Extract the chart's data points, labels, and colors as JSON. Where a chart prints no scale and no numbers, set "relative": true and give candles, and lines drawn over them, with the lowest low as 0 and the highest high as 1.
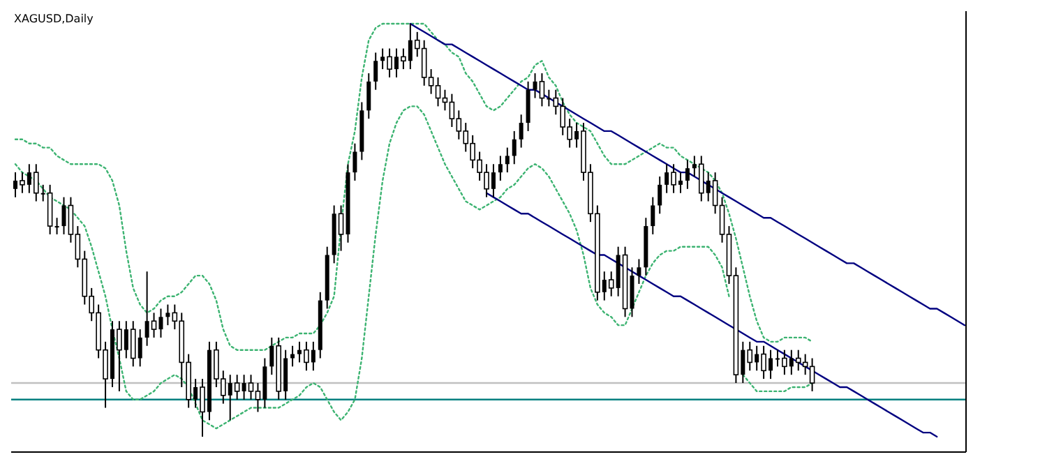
{
  "chart_data": {
    "type": "candlestick",
    "title": "XAGUSD,Daily",
    "relative": true,
    "color": "#000000",
    "categories": [
      null,
      null,
      null,
      null,
      null,
      null,
      null,
      null,
      null,
      null,
      null,
      null,
      null,
      null,
      null,
      null,
      null,
      null,
      null,
      null,
      null,
      null,
      null,
      null,
      null,
      null,
      null,
      null,
      null,
      null,
      null,
      null,
      null,
      null,
      null,
      null,
      null,
      null,
      null,
      null,
      null,
      null,
      null,
      null,
      null,
      null,
      null,
      null,
      null,
      null,
      null,
      null,
      null,
      null,
      null,
      null,
      null,
      null,
      null,
      null,
      null,
      null,
      null,
      null,
      null,
      null,
      null,
      null,
      null,
      null,
      null,
      null,
      null,
      null,
      null,
      null,
      null,
      null,
      null,
      null,
      null,
      null,
      null,
      null,
      null,
      null,
      null,
      null,
      null,
      null,
      null,
      null,
      null,
      null,
      null,
      null,
      null,
      null,
      null,
      null,
      null,
      null,
      null,
      null,
      null,
      null,
      null,
      null,
      null,
      null,
      null,
      null,
      null,
      null,
      null,
      null,
      null,
      null,
      null,
      null,
      null,
      null,
      null,
      null,
      null,
      null,
      null,
      null,
      null,
      null,
      null,
      null,
      null,
      null,
      null,
      null,
      null,
      null
    ],
    "ohlc": [
      [
        0.6,
        0.64,
        0.58,
        0.62
      ],
      [
        0.62,
        0.64,
        0.59,
        0.61
      ],
      [
        0.61,
        0.66,
        0.59,
        0.64
      ],
      [
        0.64,
        0.66,
        0.57,
        0.59
      ],
      [
        0.59,
        0.61,
        0.57,
        0.59
      ],
      [
        0.59,
        0.61,
        0.49,
        0.51
      ],
      [
        0.51,
        0.53,
        0.49,
        0.51
      ],
      [
        0.51,
        0.58,
        0.49,
        0.56
      ],
      [
        0.56,
        0.58,
        0.47,
        0.49
      ],
      [
        0.49,
        0.51,
        0.41,
        0.43
      ],
      [
        0.43,
        0.45,
        0.32,
        0.34
      ],
      [
        0.34,
        0.36,
        0.28,
        0.3
      ],
      [
        0.3,
        0.32,
        0.19,
        0.21
      ],
      [
        0.21,
        0.23,
        0.07,
        0.14
      ],
      [
        0.14,
        0.28,
        0.12,
        0.26
      ],
      [
        0.26,
        0.28,
        0.11,
        0.21
      ],
      [
        0.21,
        0.28,
        0.19,
        0.26
      ],
      [
        0.26,
        0.28,
        0.17,
        0.19
      ],
      [
        0.19,
        0.26,
        0.17,
        0.24
      ],
      [
        0.24,
        0.4,
        0.22,
        0.28
      ],
      [
        0.28,
        0.3,
        0.24,
        0.26
      ],
      [
        0.26,
        0.31,
        0.24,
        0.29
      ],
      [
        0.29,
        0.32,
        0.27,
        0.3
      ],
      [
        0.3,
        0.32,
        0.26,
        0.28
      ],
      [
        0.28,
        0.3,
        0.12,
        0.18
      ],
      [
        0.18,
        0.2,
        0.07,
        0.09
      ],
      [
        0.09,
        0.14,
        0.07,
        0.12
      ],
      [
        0.12,
        0.14,
        0.0,
        0.06
      ],
      [
        0.06,
        0.23,
        0.04,
        0.21
      ],
      [
        0.21,
        0.23,
        0.12,
        0.14
      ],
      [
        0.14,
        0.16,
        0.08,
        0.1
      ],
      [
        0.1,
        0.15,
        0.04,
        0.13
      ],
      [
        0.13,
        0.15,
        0.09,
        0.11
      ],
      [
        0.11,
        0.15,
        0.09,
        0.13
      ],
      [
        0.13,
        0.15,
        0.09,
        0.11
      ],
      [
        0.11,
        0.13,
        0.06,
        0.09
      ],
      [
        0.09,
        0.19,
        0.07,
        0.17
      ],
      [
        0.17,
        0.24,
        0.15,
        0.22
      ],
      [
        0.22,
        0.24,
        0.09,
        0.11
      ],
      [
        0.11,
        0.21,
        0.09,
        0.19
      ],
      [
        0.19,
        0.22,
        0.17,
        0.2
      ],
      [
        0.2,
        0.23,
        0.18,
        0.21
      ],
      [
        0.21,
        0.23,
        0.16,
        0.18
      ],
      [
        0.18,
        0.23,
        0.16,
        0.21
      ],
      [
        0.21,
        0.35,
        0.19,
        0.33
      ],
      [
        0.33,
        0.46,
        0.31,
        0.44
      ],
      [
        0.44,
        0.56,
        0.42,
        0.54
      ],
      [
        0.54,
        0.56,
        0.45,
        0.49
      ],
      [
        0.49,
        0.66,
        0.47,
        0.64
      ],
      [
        0.64,
        0.71,
        0.62,
        0.69
      ],
      [
        0.69,
        0.81,
        0.67,
        0.79
      ],
      [
        0.79,
        0.88,
        0.77,
        0.86
      ],
      [
        0.86,
        0.93,
        0.84,
        0.91
      ],
      [
        0.91,
        0.94,
        0.89,
        0.92
      ],
      [
        0.92,
        0.94,
        0.87,
        0.89
      ],
      [
        0.89,
        0.94,
        0.87,
        0.92
      ],
      [
        0.92,
        0.94,
        0.89,
        0.91
      ],
      [
        0.91,
        1.0,
        0.89,
        0.96
      ],
      [
        0.96,
        0.98,
        0.92,
        0.94
      ],
      [
        0.94,
        0.96,
        0.85,
        0.87
      ],
      [
        0.87,
        0.89,
        0.83,
        0.85
      ],
      [
        0.85,
        0.87,
        0.8,
        0.82
      ],
      [
        0.82,
        0.84,
        0.79,
        0.81
      ],
      [
        0.81,
        0.83,
        0.75,
        0.77
      ],
      [
        0.77,
        0.79,
        0.72,
        0.74
      ],
      [
        0.74,
        0.76,
        0.69,
        0.71
      ],
      [
        0.71,
        0.73,
        0.65,
        0.67
      ],
      [
        0.67,
        0.69,
        0.62,
        0.64
      ],
      [
        0.64,
        0.66,
        0.58,
        0.6
      ],
      [
        0.6,
        0.66,
        0.58,
        0.64
      ],
      [
        0.64,
        0.68,
        0.62,
        0.66
      ],
      [
        0.66,
        0.7,
        0.64,
        0.68
      ],
      [
        0.68,
        0.74,
        0.66,
        0.72
      ],
      [
        0.72,
        0.78,
        0.7,
        0.76
      ],
      [
        0.76,
        0.86,
        0.74,
        0.84
      ],
      [
        0.84,
        0.88,
        0.82,
        0.86
      ],
      [
        0.86,
        0.88,
        0.8,
        0.82
      ],
      [
        0.82,
        0.84,
        0.8,
        0.82
      ],
      [
        0.82,
        0.84,
        0.78,
        0.8
      ],
      [
        0.8,
        0.82,
        0.73,
        0.75
      ],
      [
        0.75,
        0.77,
        0.7,
        0.72
      ],
      [
        0.72,
        0.76,
        0.7,
        0.74
      ],
      [
        0.74,
        0.76,
        0.62,
        0.64
      ],
      [
        0.64,
        0.66,
        0.52,
        0.54
      ],
      [
        0.54,
        0.56,
        0.33,
        0.35
      ],
      [
        0.35,
        0.4,
        0.33,
        0.38
      ],
      [
        0.38,
        0.4,
        0.34,
        0.36
      ],
      [
        0.36,
        0.46,
        0.34,
        0.44
      ],
      [
        0.44,
        0.46,
        0.29,
        0.31
      ],
      [
        0.31,
        0.41,
        0.29,
        0.39
      ],
      [
        0.39,
        0.43,
        0.37,
        0.41
      ],
      [
        0.41,
        0.53,
        0.39,
        0.51
      ],
      [
        0.51,
        0.58,
        0.49,
        0.56
      ],
      [
        0.56,
        0.63,
        0.54,
        0.61
      ],
      [
        0.61,
        0.66,
        0.59,
        0.64
      ],
      [
        0.64,
        0.66,
        0.59,
        0.61
      ],
      [
        0.61,
        0.64,
        0.59,
        0.62
      ],
      [
        0.62,
        0.67,
        0.6,
        0.65
      ],
      [
        0.65,
        0.68,
        0.63,
        0.66
      ],
      [
        0.66,
        0.68,
        0.57,
        0.59
      ],
      [
        0.59,
        0.64,
        0.57,
        0.62
      ],
      [
        0.62,
        0.64,
        0.54,
        0.56
      ],
      [
        0.56,
        0.58,
        0.47,
        0.49
      ],
      [
        0.49,
        0.51,
        0.37,
        0.39
      ],
      [
        0.39,
        0.41,
        0.13,
        0.15
      ],
      [
        0.15,
        0.23,
        0.13,
        0.21
      ],
      [
        0.21,
        0.23,
        0.16,
        0.18
      ],
      [
        0.18,
        0.22,
        0.16,
        0.2
      ],
      [
        0.2,
        0.22,
        0.14,
        0.16
      ],
      [
        0.16,
        0.21,
        0.14,
        0.19
      ],
      [
        0.19,
        0.21,
        0.17,
        0.19
      ],
      [
        0.19,
        0.21,
        0.15,
        0.17
      ],
      [
        0.17,
        0.21,
        0.15,
        0.19
      ],
      [
        0.19,
        0.21,
        0.16,
        0.18
      ],
      [
        0.18,
        0.2,
        0.15,
        0.17
      ],
      [
        0.17,
        0.19,
        0.11,
        0.13
      ],
      null,
      null,
      null,
      null,
      null,
      null,
      null,
      null,
      null,
      null,
      null,
      null,
      null,
      null,
      null,
      null,
      null,
      null,
      null,
      null,
      null,
      null
    ],
    "series": [
      {
        "type": "line",
        "color": "#3cb371",
        "line_style": "dotted",
        "values": [
          0.72,
          0.72,
          0.71,
          0.71,
          0.7,
          0.7,
          0.68,
          0.67,
          0.66,
          0.66,
          0.66,
          0.66,
          0.66,
          0.65,
          0.62,
          0.56,
          0.45,
          0.36,
          0.32,
          0.3,
          0.31,
          0.33,
          0.34,
          0.34,
          0.35,
          0.37,
          0.39,
          0.39,
          0.37,
          0.33,
          0.26,
          0.22,
          0.21,
          0.21,
          0.21,
          0.21,
          0.21,
          0.22,
          0.23,
          0.24,
          0.24,
          0.25,
          0.25,
          0.25,
          0.27,
          0.3,
          0.34,
          0.51,
          0.66,
          0.74,
          0.87,
          0.96,
          0.99,
          1.0,
          1.0,
          1.0,
          1.0,
          1.0,
          1.0,
          1.0,
          0.98,
          0.96,
          0.95,
          0.93,
          0.92,
          0.88,
          0.86,
          0.83,
          0.8,
          0.79,
          0.8,
          0.82,
          0.84,
          0.86,
          0.87,
          0.9,
          0.91,
          0.87,
          0.85,
          0.81,
          0.78,
          0.76,
          0.75,
          0.74,
          0.71,
          0.68,
          0.66,
          0.66,
          0.66,
          0.67,
          0.68,
          0.69,
          0.7,
          0.71,
          0.7,
          0.7,
          0.68,
          0.67,
          0.66,
          0.65,
          0.64,
          0.62,
          0.59,
          0.54,
          0.48,
          0.41,
          0.34,
          0.28,
          0.24,
          0.23,
          0.23,
          0.24,
          0.24,
          0.24,
          0.24,
          0.23,
          null,
          null,
          null,
          null,
          null,
          null,
          null,
          null,
          null,
          null,
          null,
          null,
          null,
          null,
          null,
          null,
          null,
          null,
          null,
          null,
          null,
          null
        ]
      },
      {
        "type": "line",
        "color": "#3cb371",
        "line_style": "dotted",
        "values": [
          0.66,
          0.64,
          0.63,
          0.62,
          0.6,
          0.58,
          0.57,
          0.56,
          0.55,
          0.53,
          0.51,
          0.46,
          0.4,
          0.34,
          0.26,
          0.19,
          0.11,
          0.09,
          0.09,
          0.1,
          0.11,
          0.13,
          0.14,
          0.15,
          0.14,
          0.12,
          0.08,
          0.04,
          0.03,
          0.02,
          0.03,
          0.04,
          0.05,
          0.06,
          0.07,
          0.07,
          0.07,
          0.07,
          0.07,
          0.08,
          0.09,
          0.1,
          0.12,
          0.13,
          0.12,
          0.09,
          0.06,
          0.04,
          0.06,
          0.09,
          0.19,
          0.34,
          0.49,
          0.62,
          0.71,
          0.76,
          0.79,
          0.8,
          0.8,
          0.78,
          0.74,
          0.7,
          0.66,
          0.63,
          0.6,
          0.57,
          0.56,
          0.55,
          0.56,
          0.57,
          0.58,
          0.6,
          0.61,
          0.63,
          0.65,
          0.66,
          0.65,
          0.63,
          0.6,
          0.57,
          0.54,
          0.5,
          0.44,
          0.36,
          0.32,
          0.3,
          0.29,
          0.27,
          0.27,
          0.31,
          0.35,
          0.39,
          0.42,
          0.44,
          0.45,
          0.45,
          0.46,
          0.46,
          0.46,
          0.46,
          0.46,
          0.44,
          0.41,
          0.34,
          null,
          0.15,
          0.13,
          0.11,
          0.11,
          0.11,
          0.11,
          0.11,
          0.12,
          0.12,
          0.12,
          0.13,
          null,
          null,
          null,
          null,
          null,
          null,
          null,
          null,
          null,
          null,
          null,
          null,
          null,
          null,
          null,
          null,
          null,
          null,
          null,
          null,
          null,
          null
        ]
      },
      {
        "type": "line",
        "color": "#000080",
        "line_style": "solid",
        "values": [
          null,
          null,
          null,
          null,
          null,
          null,
          null,
          null,
          null,
          null,
          null,
          null,
          null,
          null,
          null,
          null,
          null,
          null,
          null,
          null,
          null,
          null,
          null,
          null,
          null,
          null,
          null,
          null,
          null,
          null,
          null,
          null,
          null,
          null,
          null,
          null,
          null,
          null,
          null,
          null,
          null,
          null,
          null,
          null,
          null,
          null,
          null,
          null,
          null,
          null,
          null,
          null,
          null,
          null,
          null,
          null,
          null,
          1.0,
          0.99,
          0.98,
          0.97,
          0.96,
          0.95,
          0.95,
          0.94,
          0.93,
          0.92,
          0.91,
          0.9,
          0.89,
          0.88,
          0.87,
          0.86,
          0.85,
          0.84,
          0.84,
          0.83,
          0.82,
          0.81,
          0.8,
          0.79,
          0.78,
          0.77,
          0.76,
          0.75,
          0.74,
          0.74,
          0.73,
          0.72,
          0.71,
          0.7,
          0.69,
          0.68,
          0.67,
          0.66,
          0.65,
          0.64,
          0.64,
          0.63,
          0.62,
          0.61,
          0.6,
          0.59,
          0.58,
          0.57,
          0.56,
          0.55,
          0.54,
          0.53,
          0.53,
          0.52,
          0.51,
          0.5,
          0.49,
          0.48,
          0.47,
          0.46,
          0.45,
          0.44,
          0.43,
          0.42,
          0.42,
          0.41,
          0.4,
          0.39,
          0.38,
          0.37,
          0.36,
          0.35,
          0.34,
          0.33,
          0.32,
          0.31,
          0.31,
          0.3,
          0.29,
          0.28,
          0.27
        ]
      },
      {
        "type": "line",
        "color": "#000080",
        "line_style": "solid",
        "values": [
          null,
          null,
          null,
          null,
          null,
          null,
          null,
          null,
          null,
          null,
          null,
          null,
          null,
          null,
          null,
          null,
          null,
          null,
          null,
          null,
          null,
          null,
          null,
          null,
          null,
          null,
          null,
          null,
          null,
          null,
          null,
          null,
          null,
          null,
          null,
          null,
          null,
          null,
          null,
          null,
          null,
          null,
          null,
          null,
          null,
          null,
          null,
          null,
          null,
          null,
          null,
          null,
          null,
          null,
          null,
          null,
          null,
          null,
          null,
          null,
          null,
          null,
          null,
          null,
          null,
          null,
          null,
          null,
          0.59,
          0.58,
          0.57,
          0.56,
          0.55,
          0.54,
          0.54,
          0.53,
          0.52,
          0.51,
          0.5,
          0.49,
          0.48,
          0.47,
          0.46,
          0.45,
          0.44,
          0.44,
          0.43,
          0.42,
          0.41,
          0.4,
          0.39,
          0.38,
          0.37,
          0.36,
          0.35,
          0.34,
          0.34,
          0.33,
          0.32,
          0.31,
          0.3,
          0.29,
          0.28,
          0.27,
          0.26,
          0.25,
          0.24,
          0.23,
          0.23,
          0.22,
          0.21,
          0.2,
          0.19,
          0.18,
          0.17,
          0.16,
          0.15,
          0.14,
          0.13,
          0.12,
          0.12,
          0.11,
          0.1,
          0.09,
          0.08,
          0.07,
          0.06,
          0.05,
          0.04,
          0.03,
          0.02,
          0.01,
          0.01,
          0.0,
          null,
          null,
          null,
          null
        ]
      }
    ],
    "ref_lines": [
      {
        "axis": "y",
        "value": 0.13,
        "color": "#c0c0c0"
      },
      {
        "axis": "y",
        "value": 0.09,
        "color": "#008080"
      }
    ]
  }
}
